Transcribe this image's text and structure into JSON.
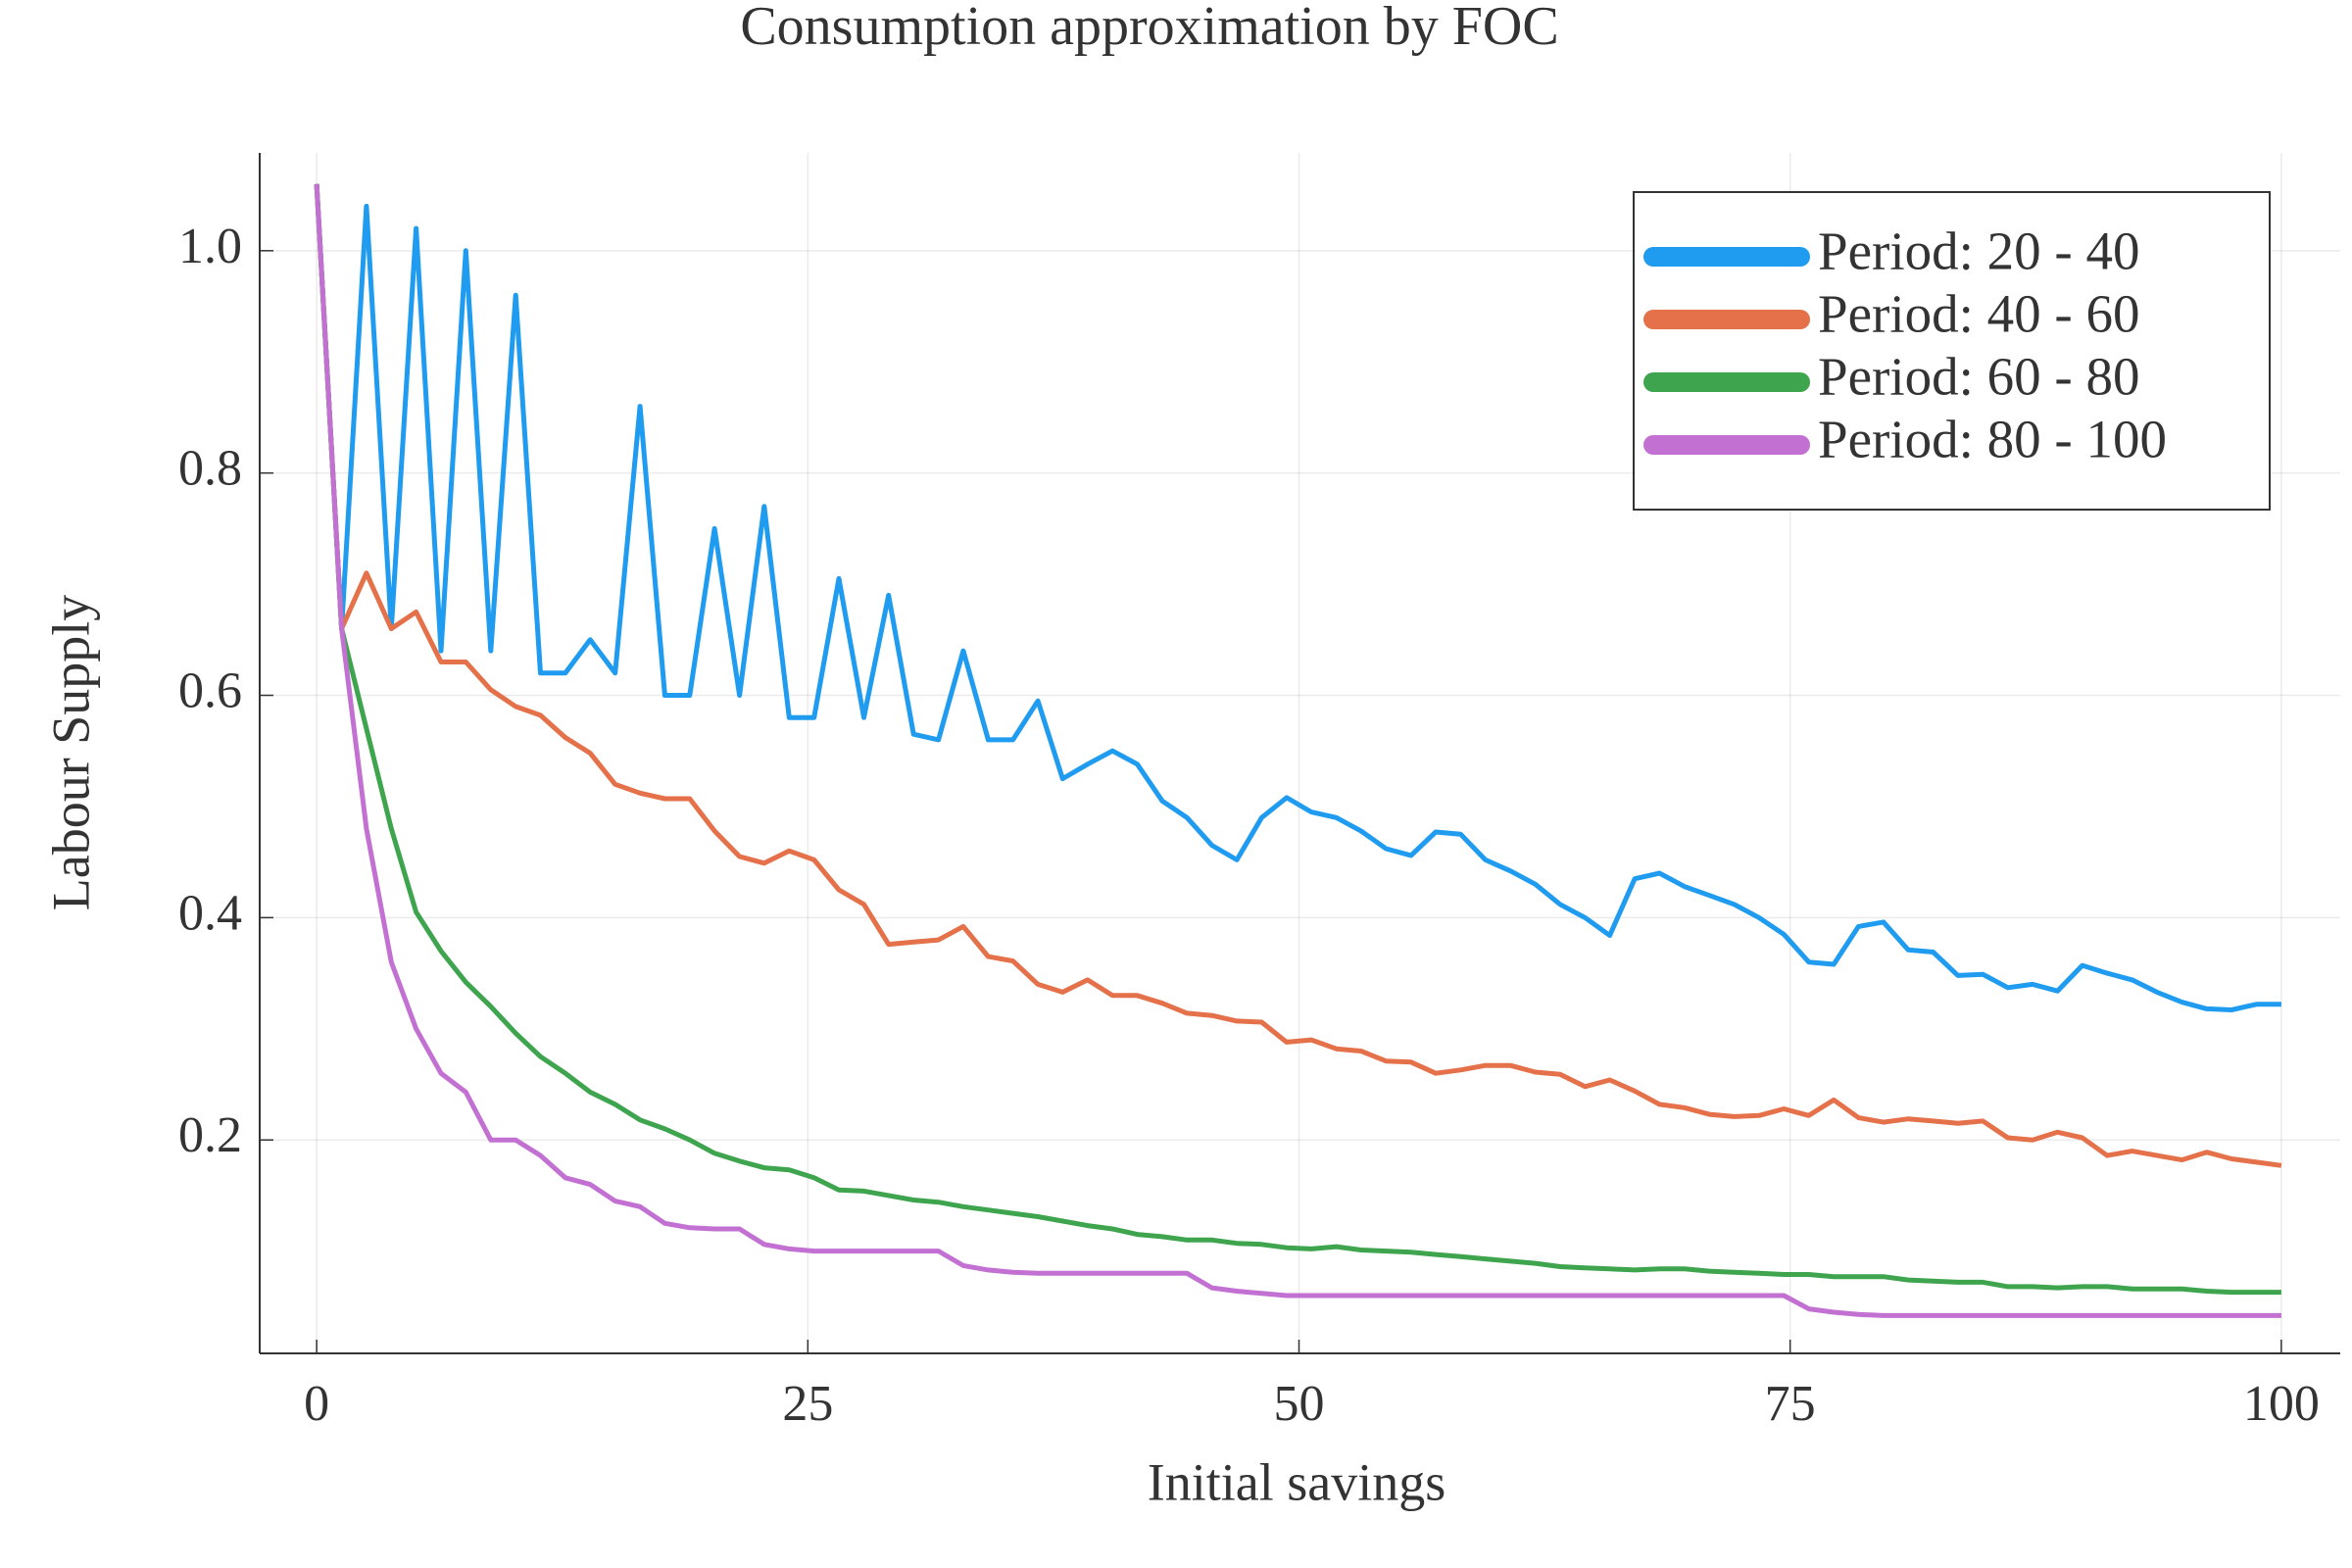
{
  "chart_data": {
    "type": "line",
    "title": "Consumption approximation by FOC",
    "x_label": "Initial savings",
    "y_label": "Labour Supply",
    "x": [
      0,
      1.27,
      2.53,
      3.8,
      5.06,
      6.33,
      7.59,
      8.86,
      10.13,
      11.39,
      12.66,
      13.92,
      15.19,
      16.46,
      17.72,
      18.99,
      20.25,
      21.52,
      22.78,
      24.05,
      25.32,
      26.58,
      27.85,
      29.11,
      30.38,
      31.65,
      32.91,
      34.18,
      35.44,
      36.71,
      37.97,
      39.24,
      40.51,
      41.77,
      43.04,
      44.3,
      45.57,
      46.84,
      48.1,
      49.37,
      50.63,
      51.9,
      53.16,
      54.43,
      55.7,
      56.96,
      58.23,
      59.49,
      60.76,
      62.03,
      63.29,
      64.56,
      65.82,
      67.09,
      68.35,
      69.62,
      70.89,
      72.15,
      73.42,
      74.68,
      75.95,
      77.22,
      78.48,
      79.75,
      81.01,
      82.28,
      83.54,
      84.81,
      86.08,
      87.34,
      88.61,
      89.87,
      91.14,
      92.41,
      93.67,
      94.94,
      96.2,
      97.47,
      98.73,
      100
    ],
    "series": [
      {
        "name": "Period: 20 - 40",
        "color": "#1f9bef",
        "values": [
          1.06,
          0.66,
          1.04,
          0.66,
          1.02,
          0.64,
          1.0,
          0.64,
          0.96,
          0.62,
          0.62,
          0.65,
          0.62,
          0.86,
          0.6,
          0.6,
          0.75,
          0.6,
          0.77,
          0.58,
          0.58,
          0.705,
          0.58,
          0.69,
          0.565,
          0.56,
          0.64,
          0.56,
          0.56,
          0.595,
          0.525,
          0.538,
          0.55,
          0.538,
          0.505,
          0.49,
          0.465,
          0.452,
          0.49,
          0.508,
          0.495,
          0.49,
          0.478,
          0.462,
          0.456,
          0.477,
          0.475,
          0.452,
          0.442,
          0.43,
          0.412,
          0.4,
          0.384,
          0.435,
          0.44,
          0.428,
          0.42,
          0.412,
          0.4,
          0.385,
          0.36,
          0.358,
          0.392,
          0.396,
          0.371,
          0.369,
          0.348,
          0.349,
          0.337,
          0.34,
          0.334,
          0.357,
          0.35,
          0.344,
          0.333,
          0.324,
          0.318,
          0.317,
          0.322,
          0.322
        ]
      },
      {
        "name": "Period: 40 - 60",
        "color": "#e4714a",
        "values": [
          1.06,
          0.66,
          0.71,
          0.66,
          0.675,
          0.63,
          0.63,
          0.605,
          0.59,
          0.582,
          0.562,
          0.548,
          0.52,
          0.512,
          0.507,
          0.507,
          0.478,
          0.455,
          0.449,
          0.46,
          0.452,
          0.425,
          0.412,
          0.376,
          0.378,
          0.38,
          0.392,
          0.365,
          0.361,
          0.34,
          0.333,
          0.344,
          0.33,
          0.33,
          0.323,
          0.314,
          0.312,
          0.307,
          0.306,
          0.288,
          0.29,
          0.282,
          0.28,
          0.271,
          0.27,
          0.26,
          0.263,
          0.267,
          0.267,
          0.261,
          0.259,
          0.248,
          0.254,
          0.244,
          0.232,
          0.229,
          0.223,
          0.221,
          0.222,
          0.228,
          0.222,
          0.236,
          0.22,
          0.216,
          0.219,
          0.217,
          0.215,
          0.217,
          0.202,
          0.2,
          0.207,
          0.202,
          0.186,
          0.19,
          0.186,
          0.182,
          0.189,
          0.183,
          0.18,
          0.177
        ]
      },
      {
        "name": "Period: 60 - 80",
        "color": "#3ea44e",
        "values": [
          1.06,
          0.66,
          0.57,
          0.48,
          0.405,
          0.37,
          0.342,
          0.32,
          0.296,
          0.275,
          0.26,
          0.243,
          0.232,
          0.218,
          0.21,
          0.2,
          0.188,
          0.181,
          0.175,
          0.173,
          0.166,
          0.155,
          0.154,
          0.15,
          0.146,
          0.144,
          0.14,
          0.137,
          0.134,
          0.131,
          0.127,
          0.123,
          0.12,
          0.115,
          0.113,
          0.11,
          0.11,
          0.107,
          0.106,
          0.103,
          0.102,
          0.104,
          0.101,
          0.1,
          0.099,
          0.097,
          0.095,
          0.093,
          0.091,
          0.089,
          0.086,
          0.085,
          0.084,
          0.083,
          0.084,
          0.084,
          0.082,
          0.081,
          0.08,
          0.079,
          0.079,
          0.077,
          0.077,
          0.077,
          0.074,
          0.073,
          0.072,
          0.072,
          0.068,
          0.068,
          0.067,
          0.068,
          0.068,
          0.066,
          0.066,
          0.066,
          0.064,
          0.063,
          0.063,
          0.063
        ]
      },
      {
        "name": "Period: 80 - 100",
        "color": "#c271d2",
        "values": [
          1.06,
          0.66,
          0.48,
          0.36,
          0.3,
          0.26,
          0.243,
          0.2,
          0.2,
          0.186,
          0.166,
          0.16,
          0.145,
          0.14,
          0.125,
          0.121,
          0.12,
          0.12,
          0.106,
          0.102,
          0.1,
          0.1,
          0.1,
          0.1,
          0.1,
          0.1,
          0.087,
          0.083,
          0.081,
          0.08,
          0.08,
          0.08,
          0.08,
          0.08,
          0.08,
          0.08,
          0.067,
          0.064,
          0.062,
          0.06,
          0.06,
          0.06,
          0.06,
          0.06,
          0.06,
          0.06,
          0.06,
          0.06,
          0.06,
          0.06,
          0.06,
          0.06,
          0.06,
          0.06,
          0.06,
          0.06,
          0.06,
          0.06,
          0.06,
          0.06,
          0.048,
          0.045,
          0.043,
          0.042,
          0.042,
          0.042,
          0.042,
          0.042,
          0.042,
          0.042,
          0.042,
          0.042,
          0.042,
          0.042,
          0.042,
          0.042,
          0.042,
          0.042,
          0.042,
          0.042
        ]
      }
    ],
    "xlim": [
      -2.9,
      103
    ],
    "xticks": [
      0,
      25,
      50,
      75,
      100
    ],
    "ylim": [
      0.008,
      1.088
    ],
    "yticks": [
      0.2,
      0.4,
      0.6,
      0.8,
      {
        "value": 1.0,
        "label": "1.0"
      }
    ],
    "grid": true,
    "legend": "top-right"
  }
}
